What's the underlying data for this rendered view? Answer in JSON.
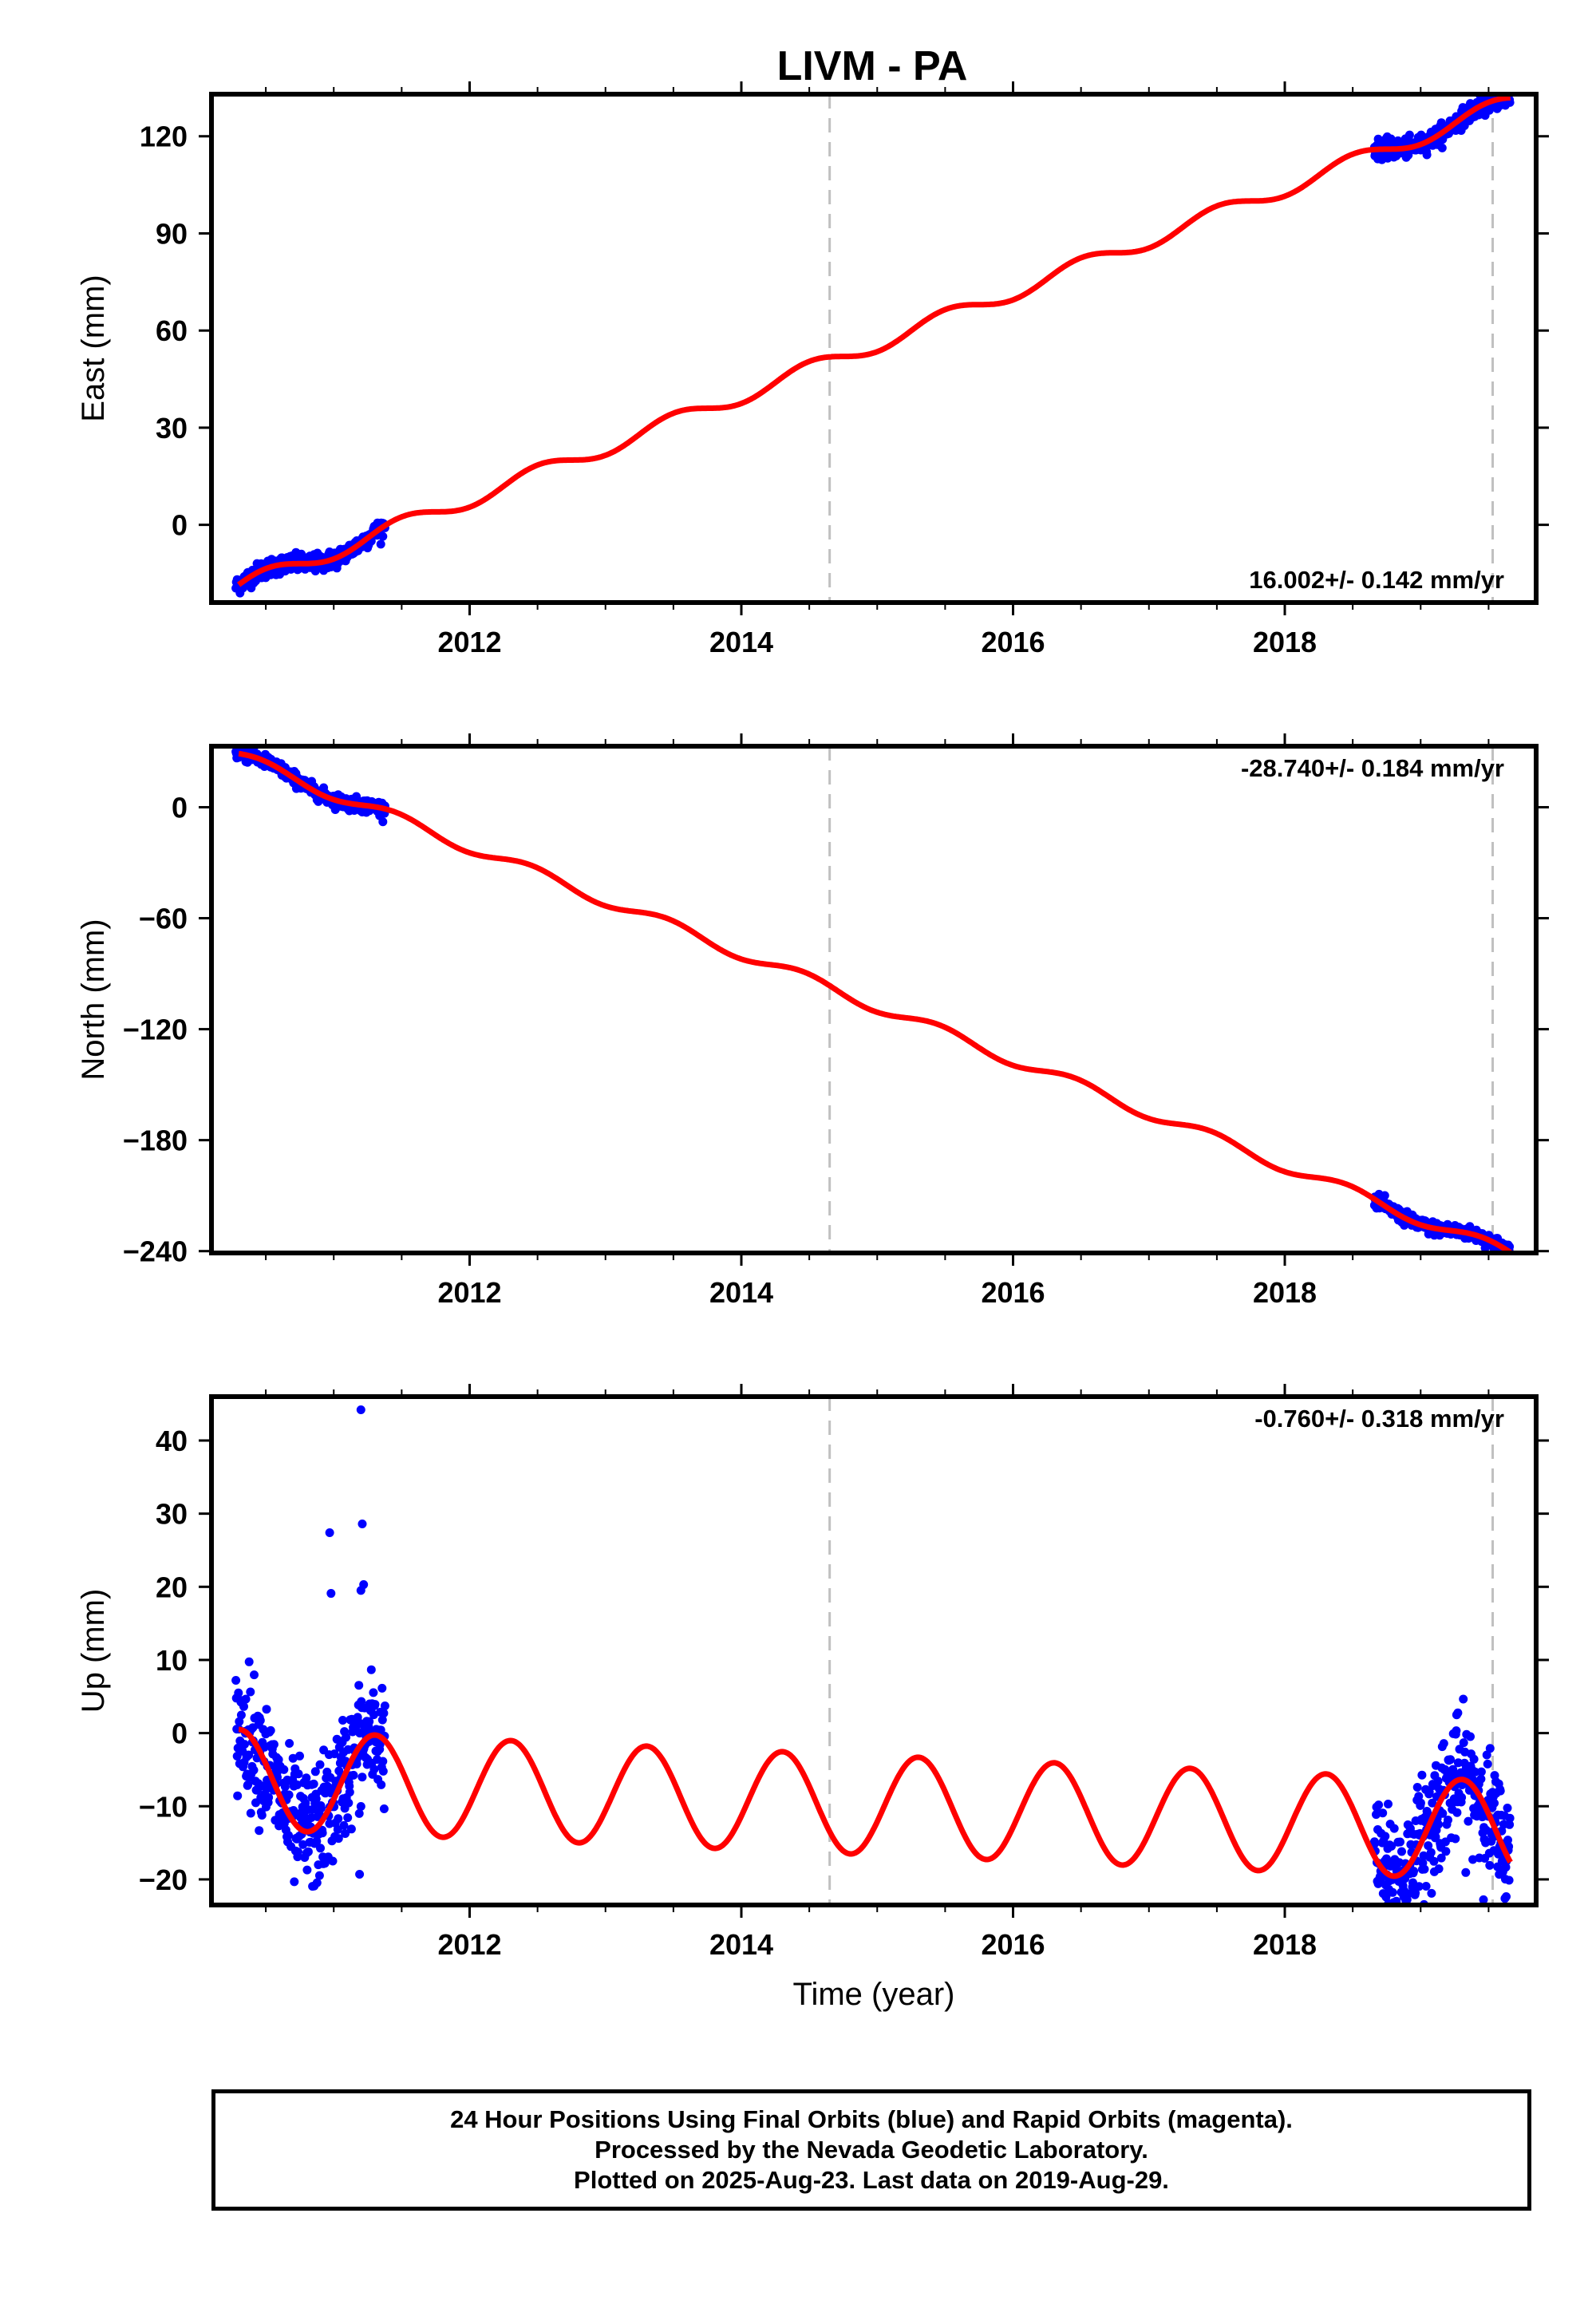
{
  "figure": {
    "title": "LIVM - PA"
  },
  "chart_data": [
    {
      "type": "scatter",
      "panel": "east",
      "ylabel": "East (mm)",
      "xlim": [
        2010.1,
        2019.85
      ],
      "ylim": [
        -24,
        133
      ],
      "yticks": [
        0,
        30,
        60,
        90,
        120
      ],
      "ytick_labels": [
        "0",
        "30",
        "60",
        "90",
        "120"
      ],
      "xticks": [
        2012,
        2014,
        2016,
        2018
      ],
      "xtick_labels": [
        "2012",
        "2014",
        "2016",
        "2018"
      ],
      "minor_xticks": [
        2010.5,
        2011,
        2011.5,
        2012.5,
        2013,
        2013.5,
        2014.5,
        2015,
        2015.5,
        2016.5,
        2017,
        2017.5,
        2018.5,
        2019,
        2019.5
      ],
      "rate_label": "16.002+/- 0.142 mm/yr",
      "rate_position": "bottom-right",
      "reference_lines": [
        2014.65,
        2019.53
      ],
      "model": {
        "name": "model fit",
        "color": "#ff0000",
        "t0": 2010.3,
        "offset": -18.5,
        "rate": 16.002,
        "seasonal_amp": 2.5,
        "phase": 0.3
      },
      "series": [
        {
          "name": "final orbits",
          "color": "#0000ff",
          "segments": [
            [
              2010.28,
              2011.38
            ],
            [
              2018.66,
              2019.66
            ]
          ],
          "scatter": 1.4
        }
      ]
    },
    {
      "type": "scatter",
      "panel": "north",
      "ylabel": "North (mm)",
      "xlim": [
        2010.1,
        2019.85
      ],
      "ylim": [
        -241,
        33
      ],
      "yticks": [
        -240,
        -180,
        -120,
        -60,
        0
      ],
      "ytick_labels": [
        "−240",
        "−180",
        "−120",
        "−60",
        "0"
      ],
      "xticks": [
        2012,
        2014,
        2016,
        2018
      ],
      "xtick_labels": [
        "2012",
        "2014",
        "2016",
        "2018"
      ],
      "minor_xticks": [
        2010.5,
        2011,
        2011.5,
        2012.5,
        2013,
        2013.5,
        2014.5,
        2015,
        2015.5,
        2016.5,
        2017,
        2017.5,
        2018.5,
        2019,
        2019.5
      ],
      "rate_label": "-28.740+/- 0.184 mm/yr",
      "rate_position": "top-right",
      "reference_lines": [
        2014.65,
        2019.53
      ],
      "model": {
        "name": "model fit",
        "color": "#ff0000",
        "t0": 2010.3,
        "offset": 29,
        "rate": -28.74,
        "seasonal_amp": 3.2,
        "phase": 0.55
      },
      "series": [
        {
          "name": "final orbits",
          "color": "#0000ff",
          "segments": [
            [
              2010.28,
              2011.38
            ],
            [
              2018.66,
              2019.66
            ]
          ],
          "scatter": 1.8
        }
      ]
    },
    {
      "type": "scatter",
      "panel": "up",
      "ylabel": "Up (mm)",
      "xlabel": "Time (year)",
      "xlim": [
        2010.1,
        2019.85
      ],
      "ylim": [
        -23.5,
        46
      ],
      "yticks": [
        -20,
        -10,
        0,
        10,
        20,
        30,
        40
      ],
      "ytick_labels": [
        "−20",
        "−10",
        "0",
        "10",
        "20",
        "30",
        "40"
      ],
      "xticks": [
        2012,
        2014,
        2016,
        2018
      ],
      "xtick_labels": [
        "2012",
        "2014",
        "2016",
        "2018"
      ],
      "minor_xticks": [
        2010.5,
        2011,
        2011.5,
        2012.5,
        2013,
        2013.5,
        2014.5,
        2015,
        2015.5,
        2016.5,
        2017,
        2017.5,
        2018.5,
        2019,
        2019.5
      ],
      "rate_label": "-0.760+/- 0.318 mm/yr",
      "rate_position": "top-right",
      "reference_lines": [
        2014.65,
        2019.53
      ],
      "model": {
        "name": "model fit",
        "color": "#ff0000",
        "t0": 2010.3,
        "offset": 0.5,
        "rate": -0.76,
        "seasonal_amp": 6.8,
        "phase": 1.55
      },
      "series": [
        {
          "name": "final orbits",
          "color": "#0000ff",
          "segments": [
            [
              2010.28,
              2011.38
            ],
            [
              2018.66,
              2019.66
            ]
          ],
          "scatter": 4.2
        }
      ],
      "outliers": [
        [
          2011.2,
          44.2
        ],
        [
          2011.21,
          28.6
        ],
        [
          2010.97,
          27.4
        ],
        [
          2011.22,
          20.3
        ],
        [
          2011.2,
          19.5
        ],
        [
          2010.98,
          19.1
        ],
        [
          2011.19,
          -19.3
        ],
        [
          2019.08,
          -21.9
        ]
      ]
    }
  ],
  "footer": {
    "line1": "24 Hour Positions Using Final Orbits (blue) and Rapid Orbits (magenta).",
    "line2": "Processed by the Nevada Geodetic Laboratory.",
    "line3": "Plotted on 2025-Aug-23. Last data on 2019-Aug-29."
  }
}
